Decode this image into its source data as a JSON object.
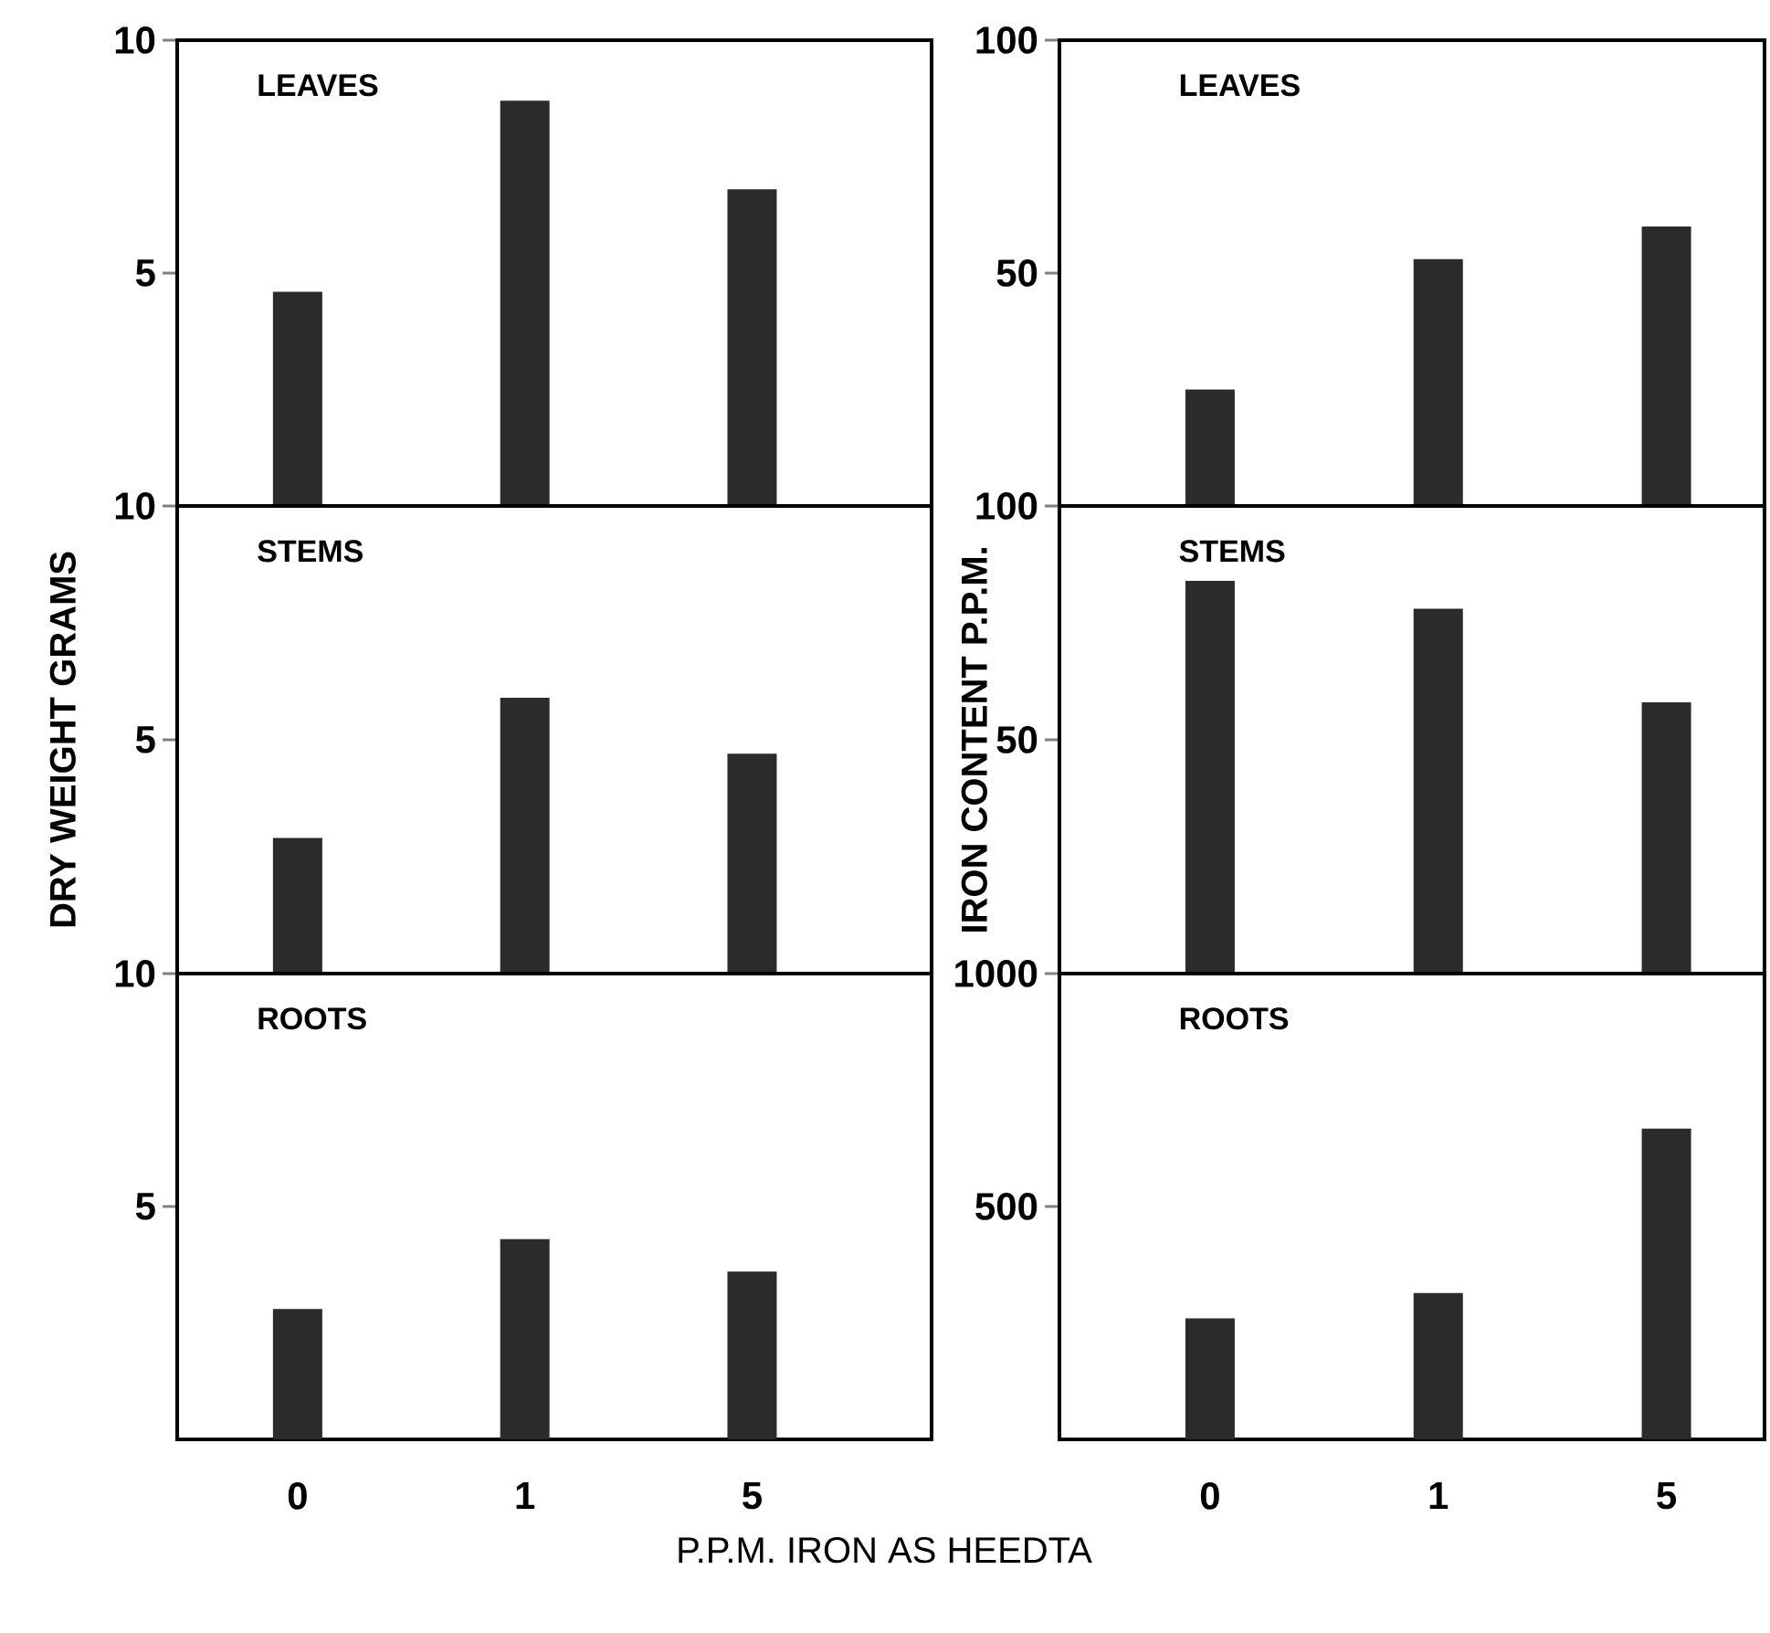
{
  "chart_data": [
    {
      "type": "bar",
      "title": "LEAVES",
      "categories": [
        "0",
        "1",
        "5"
      ],
      "values": [
        4.6,
        8.7,
        6.8
      ],
      "color": "#2b2b2b",
      "ylim": [
        0,
        10
      ],
      "yticks": [
        5,
        10
      ],
      "tick_labels": "y"
    },
    {
      "type": "bar",
      "title": "LEAVES",
      "categories": [
        "0",
        "1",
        "5"
      ],
      "values": [
        25,
        53,
        60
      ],
      "color": "#2b2b2b",
      "ylim": [
        0,
        100
      ],
      "yticks": [
        50,
        100
      ],
      "tick_labels": "y"
    },
    {
      "type": "bar",
      "title": "STEMS",
      "ylabel": "DRY WEIGHT GRAMS",
      "categories": [
        "0",
        "1",
        "5"
      ],
      "values": [
        2.9,
        5.9,
        4.7
      ],
      "color": "#2b2b2b",
      "ylim": [
        0,
        10
      ],
      "yticks": [
        5,
        10
      ],
      "tick_labels": "y"
    },
    {
      "type": "bar",
      "title": "STEMS",
      "ylabel": "IRON CONTENT P.P.M.",
      "categories": [
        "0",
        "1",
        "5"
      ],
      "values": [
        84,
        78,
        58
      ],
      "color": "#2b2b2b",
      "ylim": [
        0,
        100
      ],
      "yticks": [
        50,
        100
      ],
      "tick_labels": "y"
    },
    {
      "type": "bar",
      "title": "ROOTS",
      "xlabel": "P.P.M. IRON AS HEEDTA",
      "categories": [
        "0",
        "1",
        "5"
      ],
      "values": [
        2.8,
        4.3,
        3.6
      ],
      "color": "#2b2b2b",
      "ylim": [
        0,
        10
      ],
      "yticks": [
        5,
        10
      ]
    },
    {
      "type": "bar",
      "title": "ROOTS",
      "categories": [
        "0",
        "1",
        "5"
      ],
      "values": [
        260,
        314,
        667
      ],
      "color": "#2b2b2b",
      "ylim": [
        0,
        1000
      ],
      "yticks": [
        500,
        1000
      ]
    }
  ]
}
